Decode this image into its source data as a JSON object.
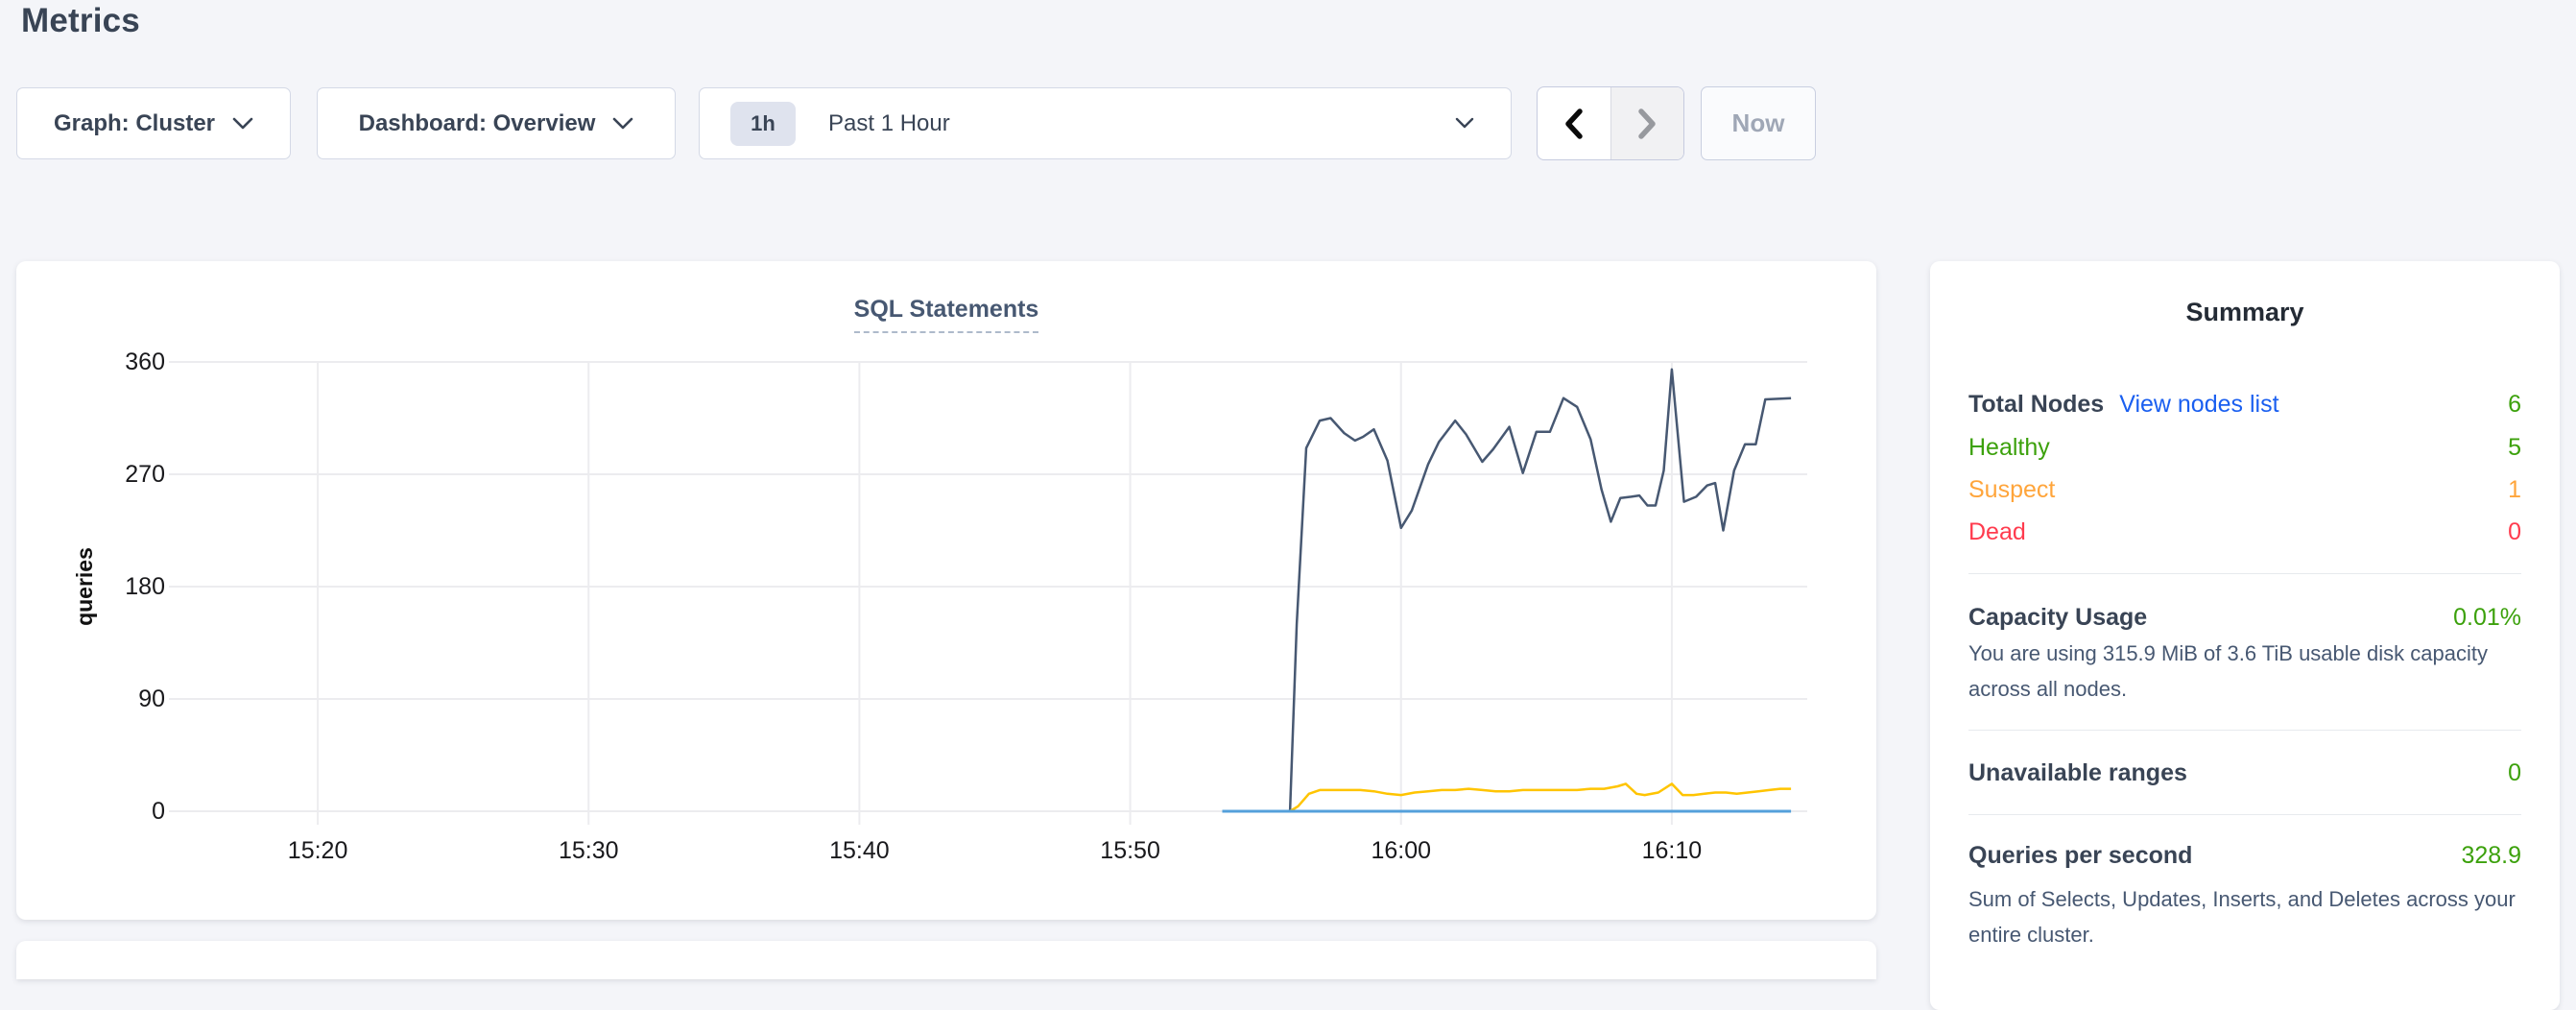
{
  "page": {
    "title": "Metrics",
    "background": "#f4f5f9"
  },
  "controls": {
    "graph_dropdown": {
      "label": "Graph: Cluster"
    },
    "dashboard_dropdown": {
      "label": "Dashboard: Overview"
    },
    "time_selector": {
      "badge": "1h",
      "label": "Past 1 Hour"
    },
    "now_button": {
      "label": "Now"
    }
  },
  "chart_data": {
    "type": "line",
    "title": "SQL Statements",
    "ylabel": "queries",
    "grid": true,
    "legend": "none",
    "grid_color": "#ececef",
    "ylim": [
      0,
      360
    ],
    "y_ticks": [
      {
        "value": 0,
        "label": "0"
      },
      {
        "value": 90,
        "label": "90"
      },
      {
        "value": 180,
        "label": "180"
      },
      {
        "value": 270,
        "label": "270"
      },
      {
        "value": 360,
        "label": "360"
      }
    ],
    "x_axis_start": "15:15",
    "x_axis_end": "16:15",
    "x_domain_minutes": [
      0,
      60
    ],
    "x_ticks": [
      {
        "minute": 5,
        "label": "15:20"
      },
      {
        "minute": 15,
        "label": "15:30"
      },
      {
        "minute": 25,
        "label": "15:40"
      },
      {
        "minute": 35,
        "label": "15:50"
      },
      {
        "minute": 45,
        "label": "16:00"
      },
      {
        "minute": 55,
        "label": "16:10"
      }
    ],
    "series": [
      {
        "name": "line-dark",
        "color": "#475872",
        "width": 2.5,
        "points": [
          [
            40.9,
            0
          ],
          [
            41.15,
            150
          ],
          [
            41.5,
            291
          ],
          [
            42.0,
            313
          ],
          [
            42.4,
            315
          ],
          [
            42.9,
            303
          ],
          [
            43.3,
            297
          ],
          [
            43.6,
            300
          ],
          [
            44.0,
            306
          ],
          [
            44.5,
            281
          ],
          [
            45.0,
            227
          ],
          [
            45.4,
            241
          ],
          [
            46.0,
            278
          ],
          [
            46.4,
            296
          ],
          [
            47.0,
            313
          ],
          [
            47.4,
            302
          ],
          [
            48.0,
            280
          ],
          [
            48.4,
            290
          ],
          [
            49.0,
            308
          ],
          [
            49.5,
            271
          ],
          [
            50.0,
            304
          ],
          [
            50.5,
            304
          ],
          [
            51.0,
            331
          ],
          [
            51.5,
            324
          ],
          [
            52.0,
            298
          ],
          [
            52.4,
            258
          ],
          [
            52.75,
            232
          ],
          [
            53.1,
            251
          ],
          [
            53.5,
            252
          ],
          [
            53.8,
            253
          ],
          [
            54.1,
            245
          ],
          [
            54.4,
            245
          ],
          [
            54.7,
            273
          ],
          [
            55.0,
            354
          ],
          [
            55.45,
            248
          ],
          [
            55.9,
            252
          ],
          [
            56.3,
            261
          ],
          [
            56.6,
            263
          ],
          [
            56.9,
            225
          ],
          [
            57.3,
            273
          ],
          [
            57.7,
            294
          ],
          [
            58.1,
            294
          ],
          [
            58.45,
            330
          ],
          [
            59.4,
            331
          ]
        ]
      },
      {
        "name": "line-yellow",
        "color": "#ffc400",
        "width": 2.5,
        "points": [
          [
            40.9,
            0
          ],
          [
            41.2,
            4
          ],
          [
            41.6,
            14
          ],
          [
            42.0,
            17
          ],
          [
            42.5,
            17
          ],
          [
            43.0,
            17
          ],
          [
            43.5,
            17
          ],
          [
            44.0,
            16
          ],
          [
            44.5,
            14
          ],
          [
            45.0,
            13
          ],
          [
            45.5,
            15
          ],
          [
            46.0,
            16
          ],
          [
            46.5,
            17
          ],
          [
            47.0,
            17
          ],
          [
            47.5,
            18
          ],
          [
            48.0,
            17
          ],
          [
            48.5,
            16
          ],
          [
            49.0,
            16
          ],
          [
            49.5,
            17
          ],
          [
            50.0,
            17
          ],
          [
            50.5,
            17
          ],
          [
            51.0,
            17
          ],
          [
            51.5,
            17
          ],
          [
            52.0,
            18
          ],
          [
            52.5,
            18
          ],
          [
            53.0,
            20
          ],
          [
            53.3,
            22
          ],
          [
            53.7,
            14
          ],
          [
            54.0,
            13
          ],
          [
            54.5,
            15
          ],
          [
            55.0,
            22
          ],
          [
            55.4,
            13
          ],
          [
            55.8,
            13
          ],
          [
            56.2,
            14
          ],
          [
            56.6,
            15
          ],
          [
            57.0,
            15
          ],
          [
            57.4,
            14
          ],
          [
            57.8,
            15
          ],
          [
            58.2,
            16
          ],
          [
            58.6,
            17
          ],
          [
            59.0,
            18
          ],
          [
            59.4,
            18
          ]
        ]
      },
      {
        "name": "line-blue",
        "color": "#54a0db",
        "width": 3,
        "points": [
          [
            38.4,
            0
          ],
          [
            59.4,
            0
          ]
        ]
      }
    ]
  },
  "summary": {
    "title": "Summary",
    "rows": [
      {
        "label": "Total Nodes",
        "link": "View nodes list",
        "value": "6",
        "label_color": "#394455",
        "value_color": "#3ca10c"
      },
      {
        "label": "Healthy",
        "value": "5",
        "label_color": "#3ca10c",
        "value_color": "#3ca10c"
      },
      {
        "label": "Suspect",
        "value": "1",
        "label_color": "#ffa53b",
        "value_color": "#ffa53b"
      },
      {
        "label": "Dead",
        "value": "0",
        "label_color": "#ff3b4e",
        "value_color": "#ff3b4e"
      }
    ],
    "sections": [
      {
        "label": "Capacity Usage",
        "value": "0.01%",
        "description": "You are using 315.9 MiB of 3.6 TiB usable disk capacity across all nodes."
      },
      {
        "label": "Unavailable ranges",
        "value": "0",
        "description": ""
      },
      {
        "label": "Queries per second",
        "value": "328.9",
        "description": "Sum of Selects, Updates, Inserts, and Deletes across your entire cluster."
      }
    ],
    "value_color": "#3ca10c",
    "link_color": "#1a5ff0"
  }
}
